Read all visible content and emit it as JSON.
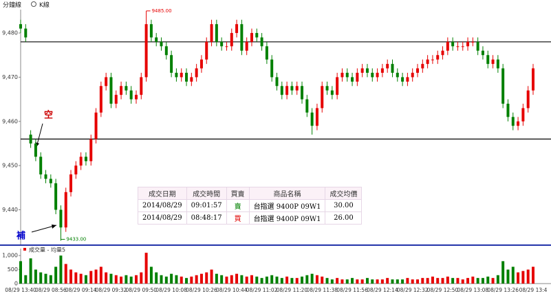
{
  "toolbar": {
    "items": [
      "分鐘線",
      "K線"
    ]
  },
  "table": {
    "columns": [
      "成交日期",
      "成交時間",
      "買賣",
      "商品名稱",
      "成交均價"
    ],
    "rows": [
      [
        "2014/08/29",
        "09:01:57",
        "賣",
        "台指選 9400P 09W1",
        "30.00"
      ],
      [
        "2014/08/29",
        "08:48:17",
        "買",
        "台指選 9400P 09W1",
        "26.00"
      ]
    ]
  },
  "chart_data": [
    {
      "type": "candlestick",
      "up_color": "#e60000",
      "down_color": "#008000",
      "ylim": [
        9432,
        9487
      ],
      "yticks": [
        {
          "value": 9440,
          "label": "9,440"
        },
        {
          "value": 9450,
          "label": "9,450"
        },
        {
          "value": 9460,
          "label": "9,460"
        },
        {
          "value": 9470,
          "label": "9,470"
        },
        {
          "value": 9480,
          "label": "9,480"
        }
      ],
      "reference_lines": [
        9478,
        9456
      ],
      "annotations": [
        "空",
        "補"
      ],
      "high_label": "9485.00",
      "low_label": "9433.00",
      "open": [
        9482,
        9481,
        9457,
        9455,
        9452,
        9448,
        9447,
        9446,
        9440,
        9436,
        9444,
        9448,
        9450,
        9452,
        9451,
        9456,
        9462,
        9468,
        9470,
        9464,
        9466,
        9468,
        9467,
        9465,
        9466,
        9470,
        9482,
        9479,
        9478,
        9477,
        9475,
        9471,
        9470,
        9471,
        9469,
        9470,
        9472,
        9474,
        9478,
        9482,
        9478,
        9477,
        9477,
        9480,
        9482,
        9476,
        9478,
        9480,
        9479,
        9477,
        9474,
        9470,
        9468,
        9466,
        9468,
        9467,
        9468,
        9465,
        9462,
        9459,
        9463,
        9468,
        9467,
        9466,
        9470,
        9471,
        9470,
        9469,
        9471,
        9472,
        9471,
        9470,
        9471,
        9472,
        9473,
        9471,
        9470,
        9469,
        9470,
        9471,
        9472,
        9473,
        9474,
        9474,
        9475,
        9476,
        9478,
        9477,
        9477,
        9477,
        9478,
        9478,
        9476,
        9475,
        9473,
        9474,
        9472,
        9464,
        9461,
        9459,
        9460,
        9463,
        9467
      ],
      "high": [
        9483,
        9482,
        9458,
        9456,
        9453,
        9449,
        9448,
        9447,
        9441,
        9445,
        9449,
        9451,
        9453,
        9453,
        9457,
        9463,
        9469,
        9471,
        9471,
        9467,
        9469,
        9469,
        9468,
        9467,
        9471,
        9485,
        9483,
        9480,
        9479,
        9478,
        9476,
        9472,
        9472,
        9472,
        9471,
        9473,
        9475,
        9479,
        9483,
        9483,
        9479,
        9478,
        9481,
        9483,
        9483,
        9479,
        9481,
        9481,
        9480,
        9478,
        9475,
        9471,
        9469,
        9469,
        9469,
        9469,
        9469,
        9466,
        9463,
        9464,
        9469,
        9469,
        9468,
        9471,
        9472,
        9472,
        9471,
        9472,
        9473,
        9473,
        9472,
        9472,
        9473,
        9474,
        9474,
        9472,
        9471,
        9471,
        9472,
        9473,
        9474,
        9475,
        9475,
        9476,
        9477,
        9479,
        9479,
        9478,
        9478,
        9479,
        9479,
        9479,
        9477,
        9476,
        9475,
        9475,
        9473,
        9465,
        9462,
        9461,
        9464,
        9468,
        9473
      ],
      "low": [
        9480,
        9478,
        9454,
        9451,
        9447,
        9446,
        9445,
        9439,
        9433,
        9435,
        9443,
        9447,
        9449,
        9450,
        9450,
        9455,
        9461,
        9467,
        9463,
        9463,
        9465,
        9466,
        9464,
        9464,
        9465,
        9469,
        9478,
        9477,
        9476,
        9474,
        9470,
        9469,
        9469,
        9468,
        9468,
        9469,
        9471,
        9473,
        9477,
        9477,
        9476,
        9476,
        9476,
        9479,
        9475,
        9475,
        9477,
        9478,
        9476,
        9473,
        9469,
        9467,
        9465,
        9465,
        9466,
        9466,
        9464,
        9461,
        9457,
        9458,
        9462,
        9466,
        9465,
        9465,
        9469,
        9469,
        9468,
        9468,
        9470,
        9470,
        9469,
        9469,
        9470,
        9471,
        9470,
        9469,
        9468,
        9468,
        9469,
        9470,
        9471,
        9472,
        9473,
        9473,
        9474,
        9475,
        9476,
        9476,
        9476,
        9476,
        9477,
        9475,
        9474,
        9472,
        9472,
        9471,
        9463,
        9460,
        9458,
        9458,
        9459,
        9462,
        9466
      ],
      "close": [
        9481,
        9479,
        9455,
        9452,
        9448,
        9447,
        9446,
        9440,
        9436,
        9444,
        9448,
        9450,
        9452,
        9451,
        9456,
        9462,
        9468,
        9470,
        9464,
        9466,
        9468,
        9467,
        9465,
        9466,
        9470,
        9482,
        9479,
        9478,
        9477,
        9475,
        9471,
        9470,
        9471,
        9469,
        9470,
        9472,
        9474,
        9478,
        9482,
        9478,
        9477,
        9477,
        9480,
        9482,
        9476,
        9478,
        9480,
        9479,
        9477,
        9474,
        9470,
        9468,
        9466,
        9468,
        9467,
        9468,
        9465,
        9462,
        9459,
        9463,
        9468,
        9467,
        9466,
        9470,
        9471,
        9470,
        9469,
        9471,
        9472,
        9471,
        9470,
        9471,
        9472,
        9473,
        9471,
        9470,
        9469,
        9470,
        9471,
        9472,
        9473,
        9474,
        9474,
        9475,
        9476,
        9478,
        9477,
        9477,
        9477,
        9478,
        9478,
        9476,
        9475,
        9473,
        9474,
        9472,
        9464,
        9461,
        9459,
        9460,
        9463,
        9467,
        9472
      ]
    },
    {
      "type": "bar",
      "title": "成交量 - 均量5",
      "legend_color": "#e60000",
      "ylim": [
        0,
        1250
      ],
      "yticks": [
        0,
        500,
        {
          "value": 1000,
          "label": "1,000"
        }
      ],
      "categories": [
        "08/29 13:40",
        null,
        null,
        null,
        null,
        null,
        "08/29 08:56",
        null,
        null,
        null,
        null,
        null,
        "08/29 09:14",
        null,
        null,
        null,
        null,
        null,
        "08/29 09:32",
        null,
        null,
        null,
        null,
        null,
        "08/29 09:50",
        null,
        null,
        null,
        null,
        null,
        "08/29 10:08",
        null,
        null,
        null,
        null,
        null,
        "08/29 10:26",
        null,
        null,
        null,
        null,
        null,
        "08/29 10:44",
        null,
        null,
        null,
        null,
        null,
        "08/29 11:02",
        null,
        null,
        null,
        null,
        null,
        "08/29 11:20",
        null,
        null,
        null,
        null,
        null,
        "08/29 11:38",
        null,
        null,
        null,
        null,
        null,
        "08/29 11:56",
        null,
        null,
        null,
        null,
        null,
        "08/29 12:14",
        null,
        null,
        null,
        null,
        null,
        "08/29 12:32",
        null,
        null,
        null,
        null,
        null,
        "08/29 12:50",
        null,
        null,
        null,
        null,
        null,
        "08/29 13:08",
        null,
        null,
        null,
        null,
        null,
        "08/29 13:26",
        null,
        null,
        null,
        null,
        null,
        "08/29 13:4"
      ],
      "values": [
        800,
        300,
        900,
        500,
        400,
        350,
        300,
        600,
        1000,
        700,
        500,
        400,
        350,
        300,
        450,
        500,
        600,
        400,
        350,
        300,
        250,
        300,
        250,
        300,
        400,
        1100,
        600,
        400,
        300,
        250,
        350,
        300,
        250,
        200,
        250,
        300,
        350,
        400,
        500,
        350,
        300,
        250,
        300,
        350,
        300,
        250,
        300,
        250,
        200,
        250,
        300,
        250,
        200,
        250,
        200,
        200,
        250,
        300,
        350,
        300,
        250,
        200,
        150,
        200,
        150,
        150,
        200,
        150,
        150,
        200,
        150,
        150,
        150,
        200,
        150,
        150,
        150,
        200,
        150,
        150,
        200,
        200,
        250,
        200,
        200,
        250,
        200,
        200,
        150,
        200,
        250,
        200,
        200,
        250,
        200,
        300,
        800,
        500,
        600,
        400,
        450,
        500,
        600
      ]
    }
  ]
}
